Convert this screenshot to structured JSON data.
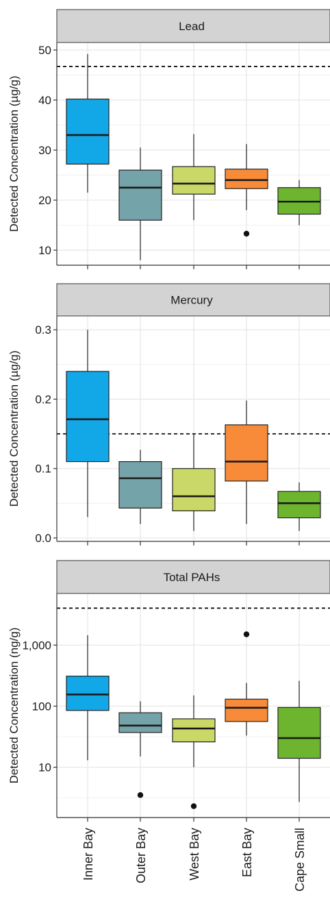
{
  "chart_data": [
    {
      "type": "box",
      "title": "Lead",
      "ylabel": "Detected Concentration (µg/g)",
      "scale": "linear",
      "ylim": [
        7,
        51.5
      ],
      "yticks": [
        10,
        20,
        30,
        40,
        50
      ],
      "ytick_labels": [
        "10",
        "20",
        "30",
        "40",
        "50"
      ],
      "threshold": 46.7,
      "categories": [
        "Inner Bay",
        "Outer Bay",
        "West Bay",
        "East Bay",
        "Cape Small"
      ],
      "boxes": [
        {
          "name": "Inner Bay",
          "min": 21.5,
          "q1": 27.2,
          "median": 33.0,
          "q3": 40.2,
          "max": 49.2,
          "outliers": []
        },
        {
          "name": "Outer Bay",
          "min": 8.0,
          "q1": 16.0,
          "median": 22.5,
          "q3": 26.0,
          "max": 30.5,
          "outliers": []
        },
        {
          "name": "West Bay",
          "min": 16.0,
          "q1": 21.2,
          "median": 23.3,
          "q3": 26.7,
          "max": 33.2,
          "outliers": []
        },
        {
          "name": "East Bay",
          "min": 18.0,
          "q1": 22.3,
          "median": 24.0,
          "q3": 26.2,
          "max": 31.2,
          "outliers": [
            13.3
          ]
        },
        {
          "name": "Cape Small",
          "min": 15.0,
          "q1": 17.2,
          "median": 19.7,
          "q3": 22.5,
          "max": 24.0,
          "outliers": []
        }
      ]
    },
    {
      "type": "box",
      "title": "Mercury",
      "ylabel": "Detected Concentration (µg/g)",
      "scale": "linear",
      "ylim": [
        -0.005,
        0.32
      ],
      "yticks": [
        0.0,
        0.1,
        0.2,
        0.3
      ],
      "ytick_labels": [
        "0.0",
        "0.1",
        "0.2",
        "0.3"
      ],
      "threshold": 0.15,
      "categories": [
        "Inner Bay",
        "Outer Bay",
        "West Bay",
        "East Bay",
        "Cape Small"
      ],
      "boxes": [
        {
          "name": "Inner Bay",
          "min": 0.03,
          "q1": 0.11,
          "median": 0.171,
          "q3": 0.24,
          "max": 0.3,
          "outliers": []
        },
        {
          "name": "Outer Bay",
          "min": 0.02,
          "q1": 0.043,
          "median": 0.086,
          "q3": 0.11,
          "max": 0.127,
          "outliers": []
        },
        {
          "name": "West Bay",
          "min": 0.01,
          "q1": 0.039,
          "median": 0.06,
          "q3": 0.1,
          "max": 0.15,
          "outliers": []
        },
        {
          "name": "East Bay",
          "min": 0.02,
          "q1": 0.082,
          "median": 0.11,
          "q3": 0.163,
          "max": 0.198,
          "outliers": []
        },
        {
          "name": "Cape Small",
          "min": 0.01,
          "q1": 0.029,
          "median": 0.05,
          "q3": 0.067,
          "max": 0.08,
          "outliers": []
        }
      ]
    },
    {
      "type": "box",
      "title": "Total PAHs",
      "ylabel": "Detected Concentration (ng/g)",
      "scale": "log",
      "ylim": [
        1.5,
        7000
      ],
      "yticks": [
        10,
        100,
        1000
      ],
      "ytick_labels": [
        "10",
        "100",
        "1,000"
      ],
      "threshold": 4022,
      "categories": [
        "Inner Bay",
        "Outer Bay",
        "West Bay",
        "East Bay",
        "Cape Small"
      ],
      "boxes": [
        {
          "name": "Inner Bay",
          "min": 13,
          "q1": 85,
          "median": 155,
          "q3": 310,
          "max": 1450,
          "outliers": []
        },
        {
          "name": "Outer Bay",
          "min": 15,
          "q1": 37,
          "median": 48,
          "q3": 78,
          "max": 120,
          "outliers": [
            3.5
          ]
        },
        {
          "name": "West Bay",
          "min": 10,
          "q1": 26,
          "median": 43,
          "q3": 62,
          "max": 150,
          "outliers": [
            2.3
          ]
        },
        {
          "name": "East Bay",
          "min": 33,
          "q1": 56,
          "median": 94,
          "q3": 130,
          "max": 240,
          "outliers": [
            1500
          ]
        },
        {
          "name": "Cape Small",
          "min": 2.7,
          "q1": 14,
          "median": 30,
          "q3": 95,
          "max": 260,
          "outliers": []
        }
      ]
    }
  ],
  "colors": {
    "Inner Bay": "#12a7e6",
    "Outer Bay": "#74a3a9",
    "West Bay": "#c9d866",
    "East Bay": "#f78b39",
    "Cape Small": "#6eb52f",
    "strip": "#d3d3d3",
    "grid": "#e6e6e6",
    "line": "#222222"
  }
}
